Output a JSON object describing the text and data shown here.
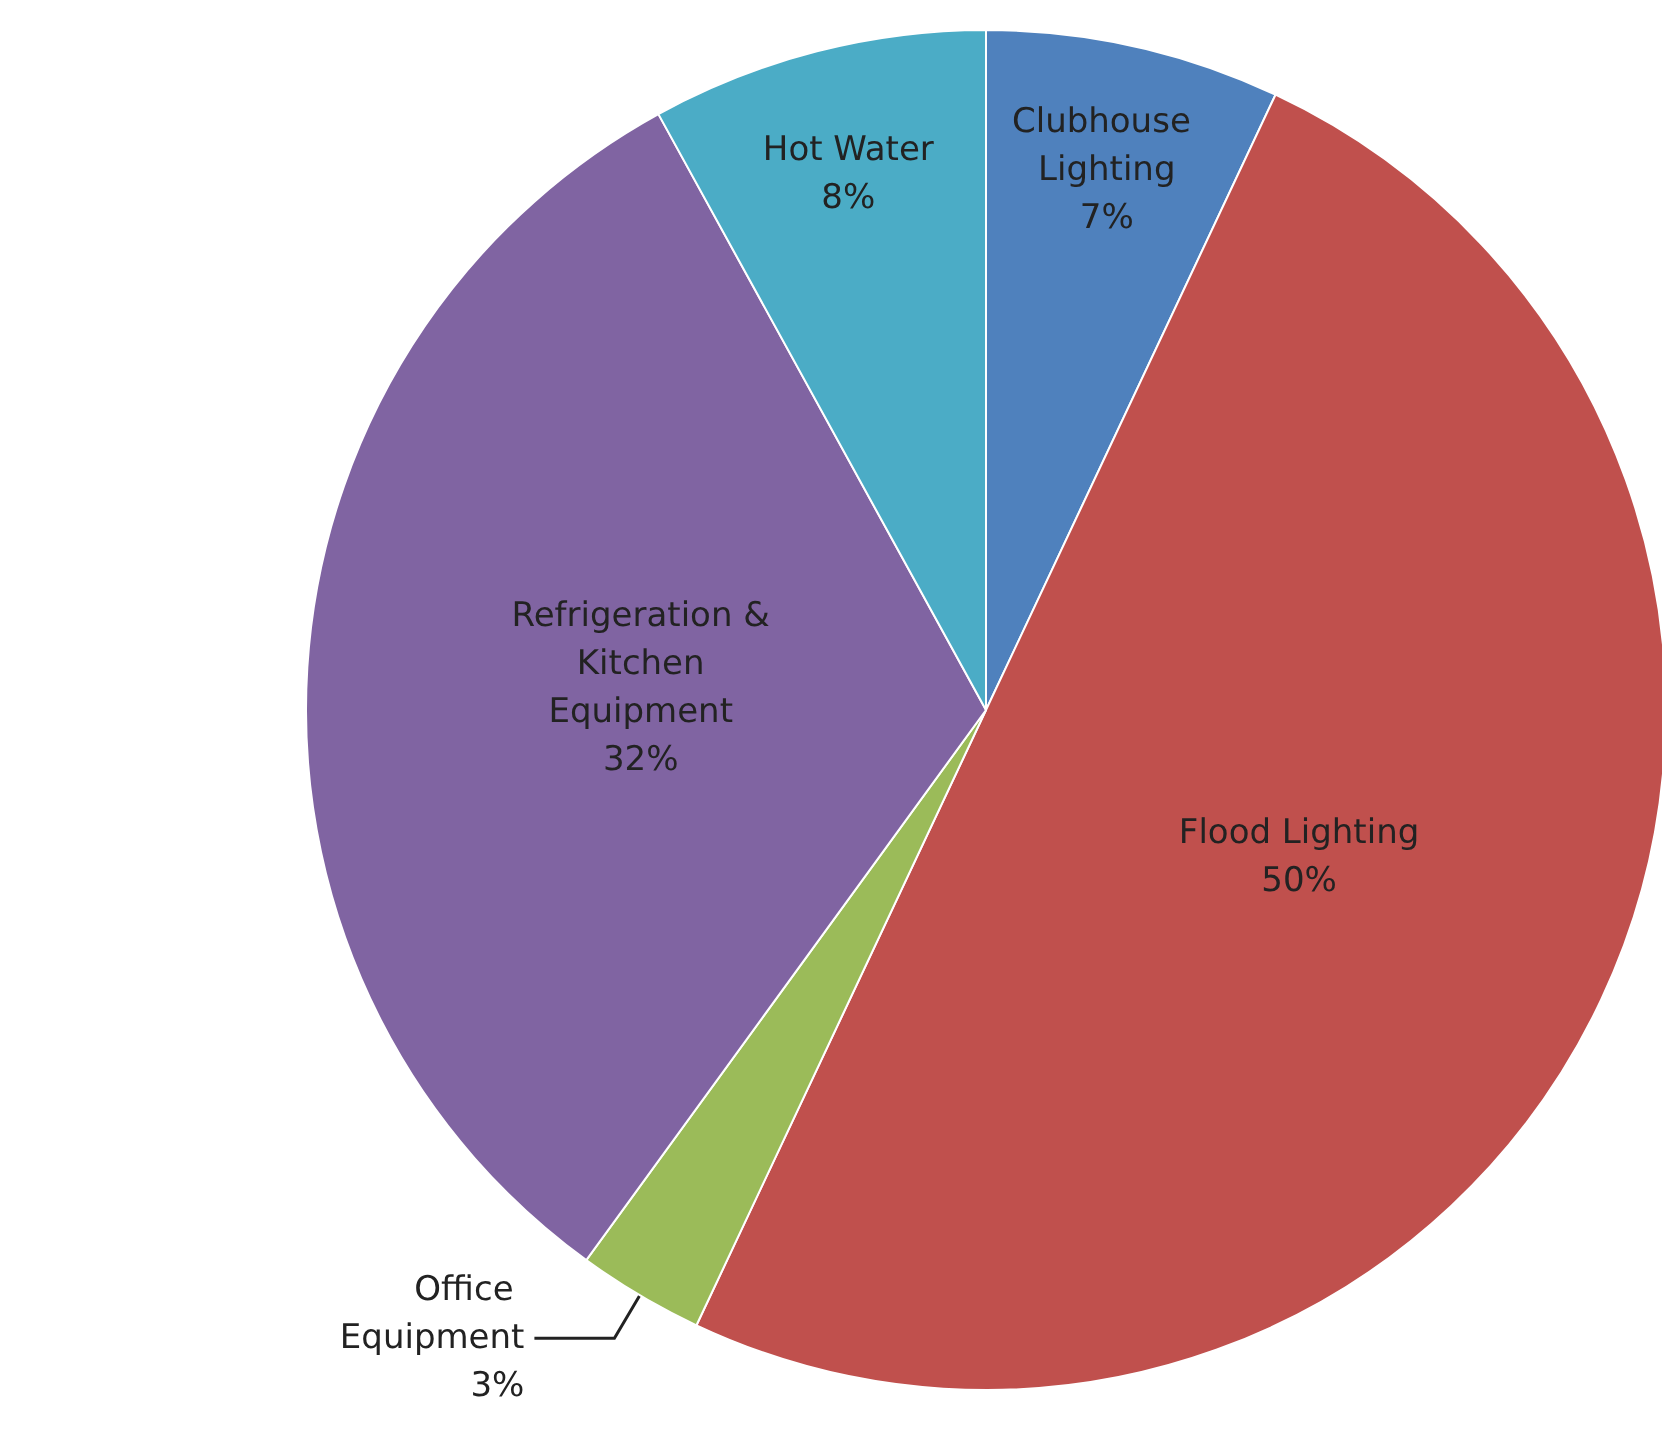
{
  "chart_data": {
    "type": "pie",
    "categories": [
      "Clubhouse Lighting",
      "Flood Lighting",
      "Office Equipment",
      "Refrigeration & Kitchen Equipment",
      "Hot Water"
    ],
    "values": [
      7,
      50,
      3,
      32,
      8
    ],
    "value_labels": [
      "7%",
      "50%",
      "3%",
      "32%",
      "8%"
    ],
    "colors": [
      "#4f81bd",
      "#c0504d",
      "#9bbb59",
      "#8064a2",
      "#4bacc6"
    ],
    "legend": false
  }
}
